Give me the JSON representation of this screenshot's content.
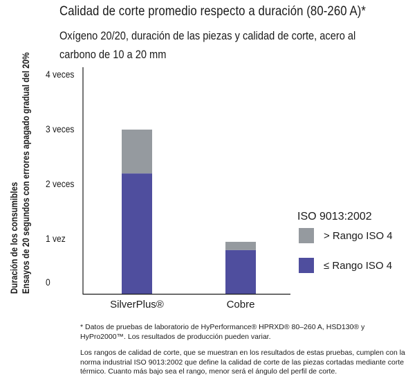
{
  "title": "Calidad de corte promedio respecto a duración (80-260 A)*",
  "subtitle": "Oxígeno 20/20, duración de las piezas y calidad de corte, acero al carbono de 10 a 20 mm",
  "ylabel_line1": "Duración de los consumibles",
  "ylabel_line2": "Ensayos de 20 segundos con errores apagado gradual del 20%",
  "footnote1": "* Datos de pruebas de laboratorio de HyPerformance® HPRXD® 80–260 A, HSD130® y HyPro2000™. Los resultados de producción pueden variar.",
  "footnote2": "Los rangos de calidad de corte, que se muestran en los resultados de estas pruebas, cumplen con la norma industrial ISO 9013:2002 que define la calidad de corte de las piezas cortadas mediante corte térmico. Cuanto más bajo sea el rango, menor será el ángulo del perfil de corte.",
  "chart_data": {
    "type": "bar",
    "stacked": true,
    "categories": [
      "SilverPlus®",
      "Cobre"
    ],
    "series": [
      {
        "name": "≤ Rango ISO 4",
        "color": "#4f4e9e",
        "values": [
          2.2,
          0.8
        ]
      },
      {
        "name": "> Rango ISO 4",
        "color": "#959a9f",
        "values": [
          0.8,
          0.15
        ]
      }
    ],
    "ylim": [
      0,
      4
    ],
    "yticks": [
      0,
      1,
      2,
      3,
      4
    ],
    "ytick_labels": [
      "0",
      "1 vez",
      "2 veces",
      "3 veces",
      "4 veces"
    ],
    "legend_title": "ISO 9013:2002",
    "legend_position": "right",
    "grid": false
  }
}
